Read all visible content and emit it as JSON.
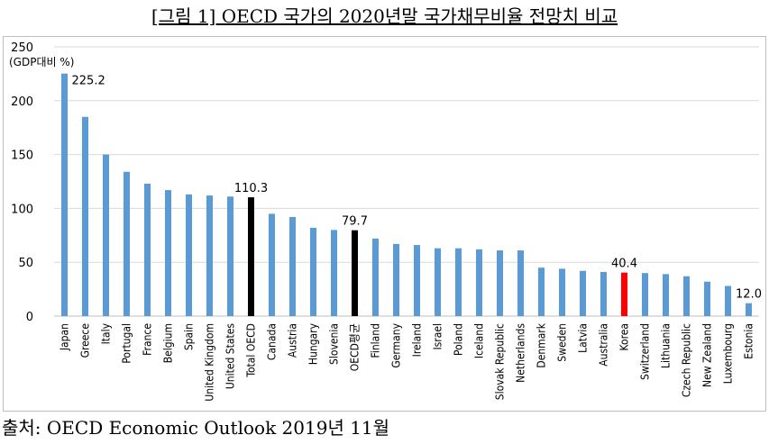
{
  "title": "[그림 1] OECD 국가의 2020년말 국가채무비율 전망치 비교",
  "source": "출처: OECD Economic Outlook 2019년 11월",
  "chart_data": {
    "type": "bar",
    "ylabel": "(GDP대비 %)",
    "ylim": [
      0,
      250
    ],
    "yticks": [
      0,
      50,
      100,
      150,
      200,
      250
    ],
    "grid": true,
    "categories": [
      "Japan",
      "Greece",
      "Italy",
      "Portugal",
      "France",
      "Belgium",
      "Spain",
      "United Kingdom",
      "United States",
      "Total OECD",
      "Canada",
      "Austria",
      "Hungary",
      "Slovenia",
      "OECD평균",
      "Finland",
      "Germany",
      "Ireland",
      "Israel",
      "Poland",
      "Iceland",
      "Slovak Republic",
      "Netherlands",
      "Denmark",
      "Sweden",
      "Latvia",
      "Australia",
      "Korea",
      "Switzerland",
      "Lithuania",
      "Czech Republic",
      "New Zealand",
      "Luxembourg",
      "Estonia"
    ],
    "values": [
      225.2,
      185,
      150,
      134,
      123,
      117,
      113,
      112,
      111,
      110.3,
      95,
      92,
      82,
      80,
      79.7,
      72,
      67,
      66,
      63,
      63,
      62,
      61,
      61,
      45,
      44,
      42,
      41,
      40.4,
      40,
      39,
      37,
      32,
      28,
      12.0
    ],
    "data_labels": [
      {
        "category": "Japan",
        "text": "225.2"
      },
      {
        "category": "Total OECD",
        "text": "110.3"
      },
      {
        "category": "OECD평균",
        "text": "79.7"
      },
      {
        "category": "Korea",
        "text": "40.4"
      },
      {
        "category": "Estonia",
        "text": "12.0"
      }
    ],
    "colors": {
      "default": "#5b9bd5",
      "Total OECD": "#000000",
      "OECD평균": "#000000",
      "Korea": "#ff0000",
      "grid": "#d9d9d9"
    }
  }
}
